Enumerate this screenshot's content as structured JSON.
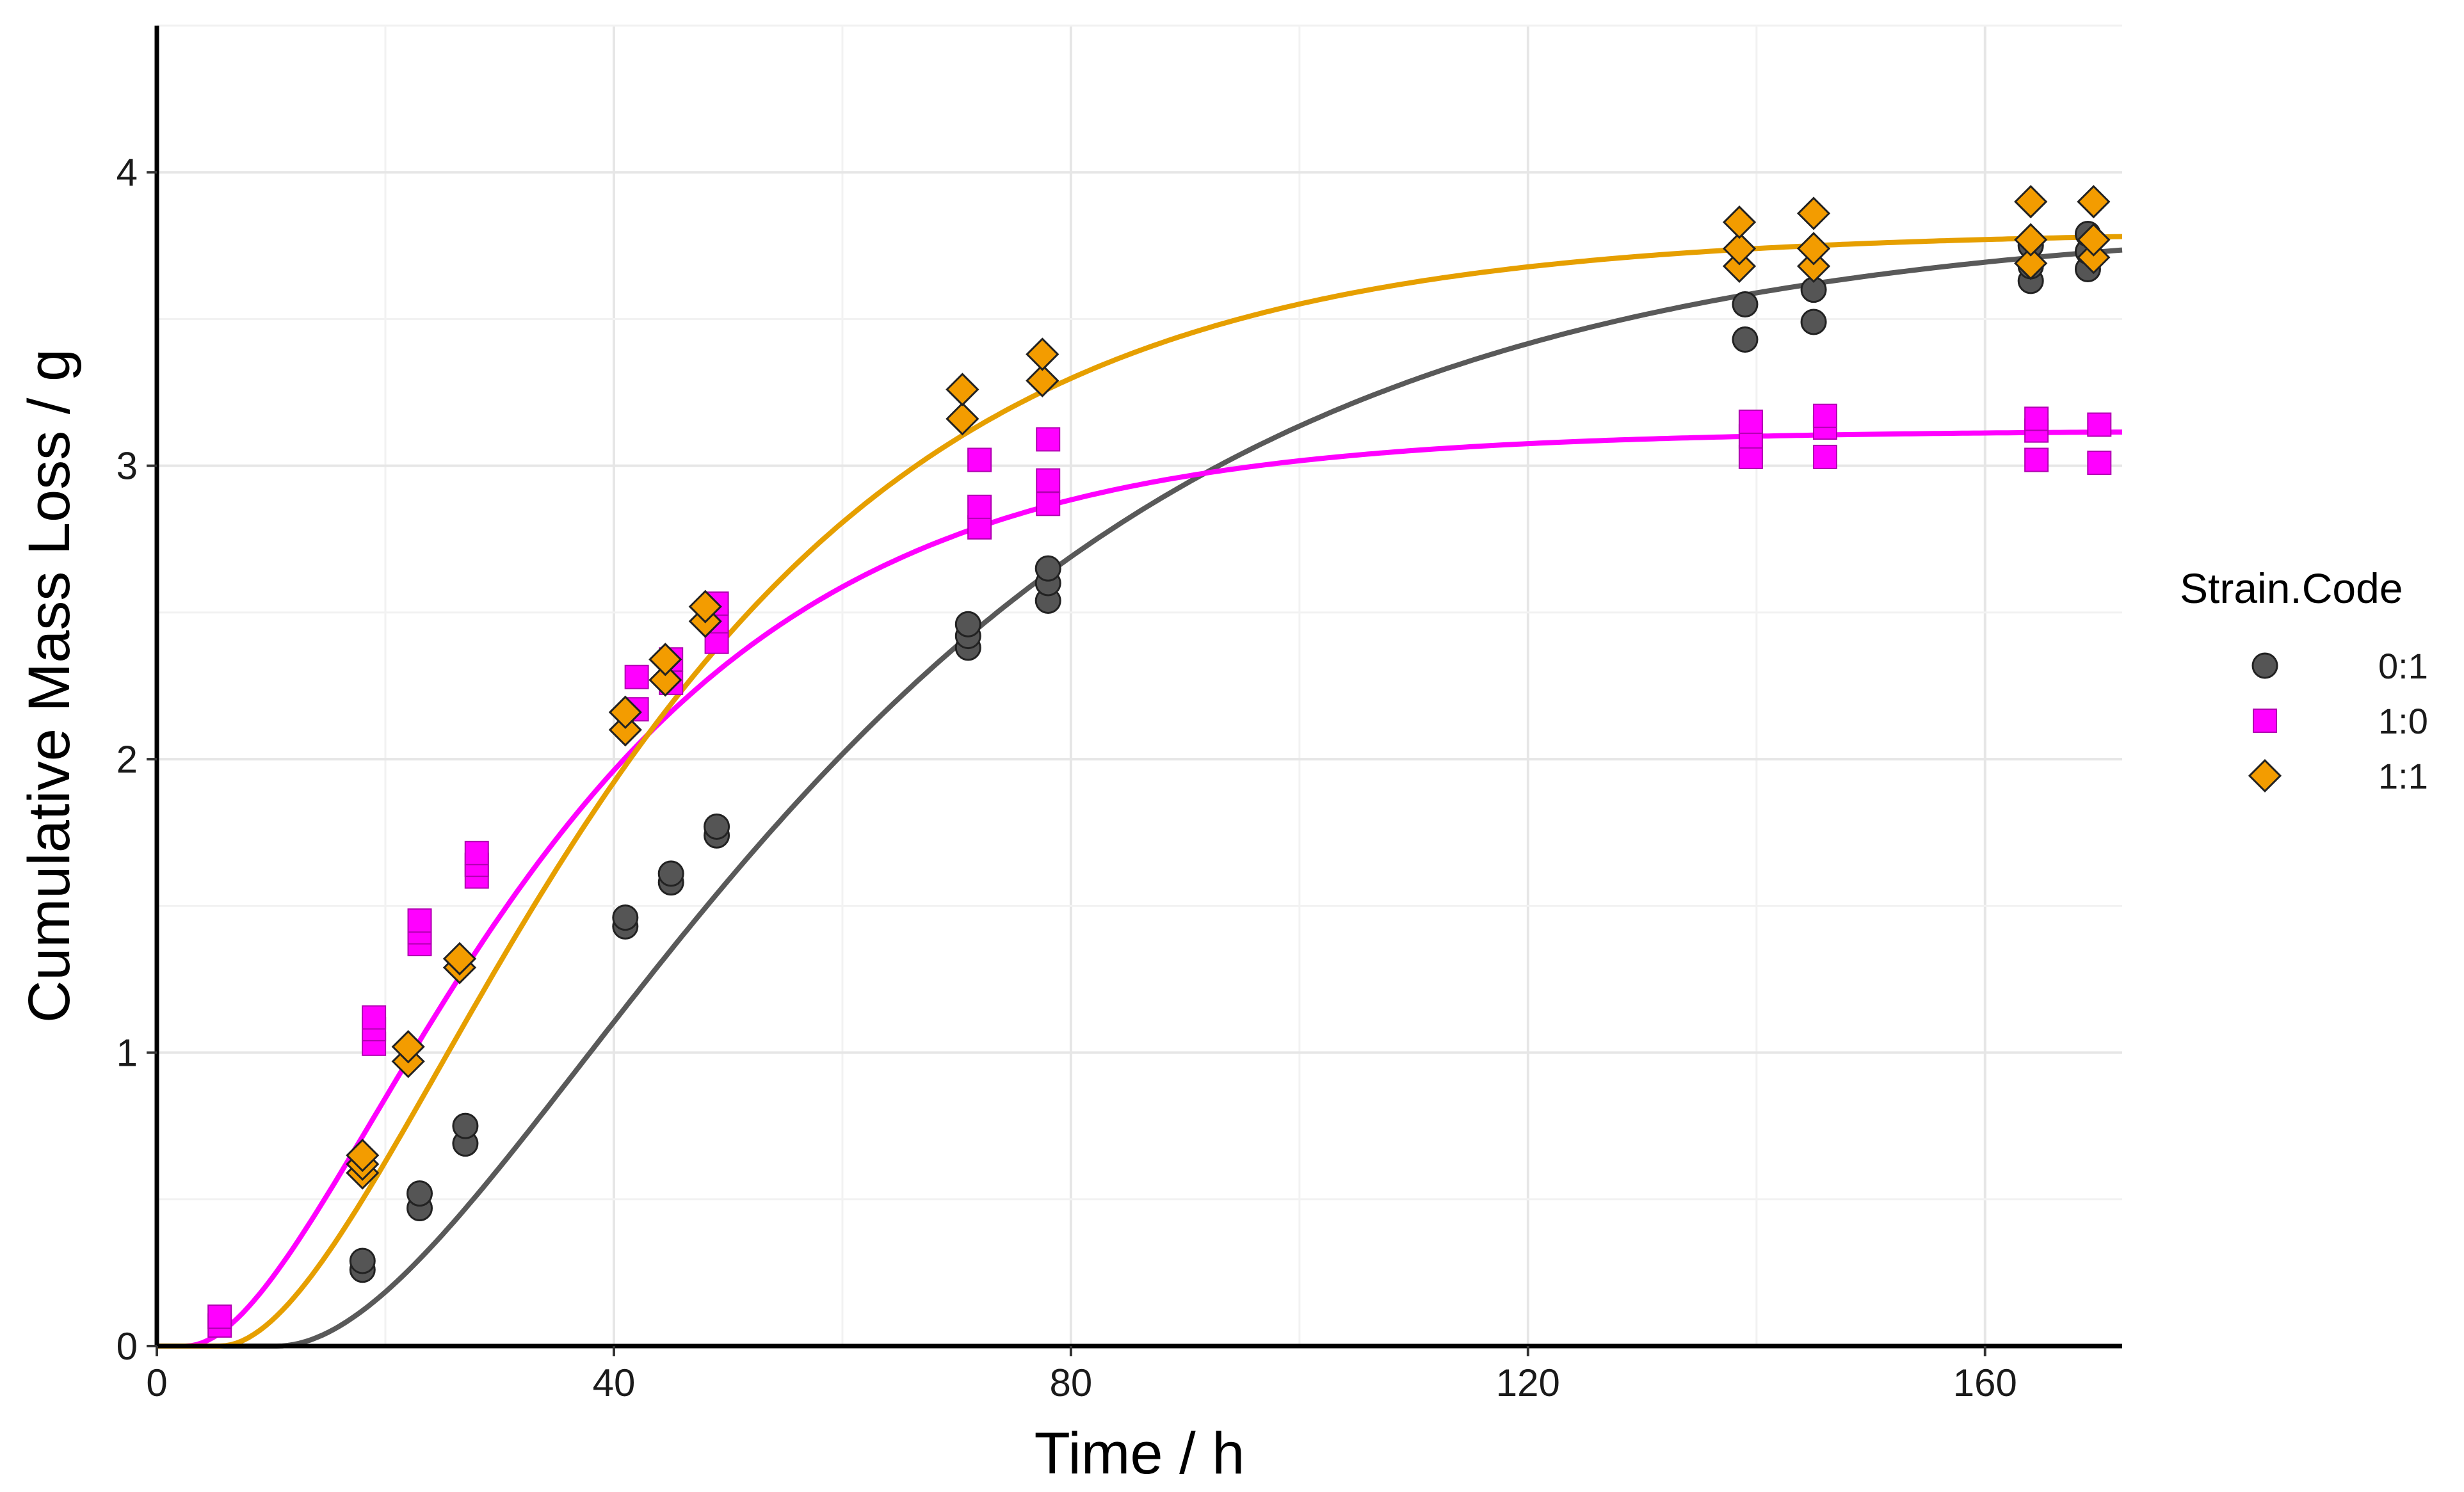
{
  "chart_data": {
    "type": "scatter",
    "title": "",
    "xlabel": "Time / h",
    "ylabel": "Cumulative Mass Loss / g",
    "xlim": [
      0,
      172
    ],
    "ylim": [
      0,
      4.5
    ],
    "x_ticks": [
      0,
      40,
      80,
      120,
      160
    ],
    "y_ticks": [
      0,
      1,
      2,
      3,
      4
    ],
    "grid": true,
    "legend": {
      "title": "Strain.Code",
      "position": "right",
      "entries": [
        {
          "label": "0:1",
          "shape": "circle",
          "color": "#555555"
        },
        {
          "label": "1:0",
          "shape": "square",
          "color": "#ff00ff"
        },
        {
          "label": "1:1",
          "shape": "diamond",
          "color": "#f39c00"
        }
      ]
    },
    "series": [
      {
        "name": "0:1",
        "shape": "circle",
        "color": "#555555",
        "line_color": "#595959",
        "fit": {
          "max": 3.85,
          "k": 0.026,
          "t0": 10.5
        },
        "points": [
          {
            "x": 18,
            "y": 0.26
          },
          {
            "x": 18,
            "y": 0.29
          },
          {
            "x": 23,
            "y": 0.47
          },
          {
            "x": 23,
            "y": 0.52
          },
          {
            "x": 27,
            "y": 0.69
          },
          {
            "x": 27,
            "y": 0.75
          },
          {
            "x": 41,
            "y": 1.43
          },
          {
            "x": 41,
            "y": 1.46
          },
          {
            "x": 45,
            "y": 1.58
          },
          {
            "x": 45,
            "y": 1.61
          },
          {
            "x": 49,
            "y": 1.74
          },
          {
            "x": 49,
            "y": 1.77
          },
          {
            "x": 71,
            "y": 2.38
          },
          {
            "x": 71,
            "y": 2.42
          },
          {
            "x": 71,
            "y": 2.46
          },
          {
            "x": 78,
            "y": 2.54
          },
          {
            "x": 78,
            "y": 2.6
          },
          {
            "x": 78,
            "y": 2.65
          },
          {
            "x": 139,
            "y": 3.43
          },
          {
            "x": 139,
            "y": 3.55
          },
          {
            "x": 145,
            "y": 3.49
          },
          {
            "x": 145,
            "y": 3.6
          },
          {
            "x": 164,
            "y": 3.63
          },
          {
            "x": 164,
            "y": 3.68
          },
          {
            "x": 164,
            "y": 3.75
          },
          {
            "x": 169,
            "y": 3.67
          },
          {
            "x": 169,
            "y": 3.73
          },
          {
            "x": 169,
            "y": 3.79
          }
        ]
      },
      {
        "name": "1:0",
        "shape": "square",
        "color": "#ff00ff",
        "line_color": "#ff00ff",
        "fit": {
          "max": 3.12,
          "k": 0.042,
          "t0": 2.5
        },
        "points": [
          {
            "x": 5.5,
            "y": 0.07
          },
          {
            "x": 5.5,
            "y": 0.1
          },
          {
            "x": 19,
            "y": 1.03
          },
          {
            "x": 19,
            "y": 1.08
          },
          {
            "x": 19,
            "y": 1.12
          },
          {
            "x": 23,
            "y": 1.37
          },
          {
            "x": 23,
            "y": 1.41
          },
          {
            "x": 23,
            "y": 1.45
          },
          {
            "x": 28,
            "y": 1.6
          },
          {
            "x": 28,
            "y": 1.64
          },
          {
            "x": 28,
            "y": 1.68
          },
          {
            "x": 42,
            "y": 2.17
          },
          {
            "x": 42,
            "y": 2.28
          },
          {
            "x": 45,
            "y": 2.26
          },
          {
            "x": 45,
            "y": 2.34
          },
          {
            "x": 49,
            "y": 2.4
          },
          {
            "x": 49,
            "y": 2.47
          },
          {
            "x": 49,
            "y": 2.53
          },
          {
            "x": 72,
            "y": 2.79
          },
          {
            "x": 72,
            "y": 2.86
          },
          {
            "x": 72,
            "y": 3.02
          },
          {
            "x": 78,
            "y": 2.87
          },
          {
            "x": 78,
            "y": 2.95
          },
          {
            "x": 78,
            "y": 3.09
          },
          {
            "x": 139.5,
            "y": 3.03
          },
          {
            "x": 139.5,
            "y": 3.1
          },
          {
            "x": 139.5,
            "y": 3.15
          },
          {
            "x": 146,
            "y": 3.03
          },
          {
            "x": 146,
            "y": 3.13
          },
          {
            "x": 146,
            "y": 3.17
          },
          {
            "x": 164.5,
            "y": 3.02
          },
          {
            "x": 164.5,
            "y": 3.12
          },
          {
            "x": 164.5,
            "y": 3.16
          },
          {
            "x": 170,
            "y": 3.01
          },
          {
            "x": 170,
            "y": 3.14
          }
        ]
      },
      {
        "name": "1:1",
        "shape": "diamond",
        "color": "#f39c00",
        "line_color": "#e69f00",
        "fit": {
          "max": 3.8,
          "k": 0.036,
          "t0": 5.5
        },
        "points": [
          {
            "x": 18,
            "y": 0.59
          },
          {
            "x": 18,
            "y": 0.62
          },
          {
            "x": 18,
            "y": 0.65
          },
          {
            "x": 22,
            "y": 0.97
          },
          {
            "x": 22,
            "y": 1.02
          },
          {
            "x": 26.5,
            "y": 1.29
          },
          {
            "x": 26.5,
            "y": 1.32
          },
          {
            "x": 41,
            "y": 2.1
          },
          {
            "x": 41,
            "y": 2.16
          },
          {
            "x": 44.5,
            "y": 2.27
          },
          {
            "x": 44.5,
            "y": 2.34
          },
          {
            "x": 48,
            "y": 2.47
          },
          {
            "x": 48,
            "y": 2.52
          },
          {
            "x": 70.5,
            "y": 3.16
          },
          {
            "x": 70.5,
            "y": 3.26
          },
          {
            "x": 77.5,
            "y": 3.29
          },
          {
            "x": 77.5,
            "y": 3.38
          },
          {
            "x": 138.5,
            "y": 3.68
          },
          {
            "x": 138.5,
            "y": 3.74
          },
          {
            "x": 138.5,
            "y": 3.83
          },
          {
            "x": 145,
            "y": 3.68
          },
          {
            "x": 145,
            "y": 3.74
          },
          {
            "x": 145,
            "y": 3.86
          },
          {
            "x": 164,
            "y": 3.69
          },
          {
            "x": 164,
            "y": 3.77
          },
          {
            "x": 164,
            "y": 3.9
          },
          {
            "x": 169.5,
            "y": 3.71
          },
          {
            "x": 169.5,
            "y": 3.77
          },
          {
            "x": 169.5,
            "y": 3.9
          }
        ]
      }
    ]
  }
}
